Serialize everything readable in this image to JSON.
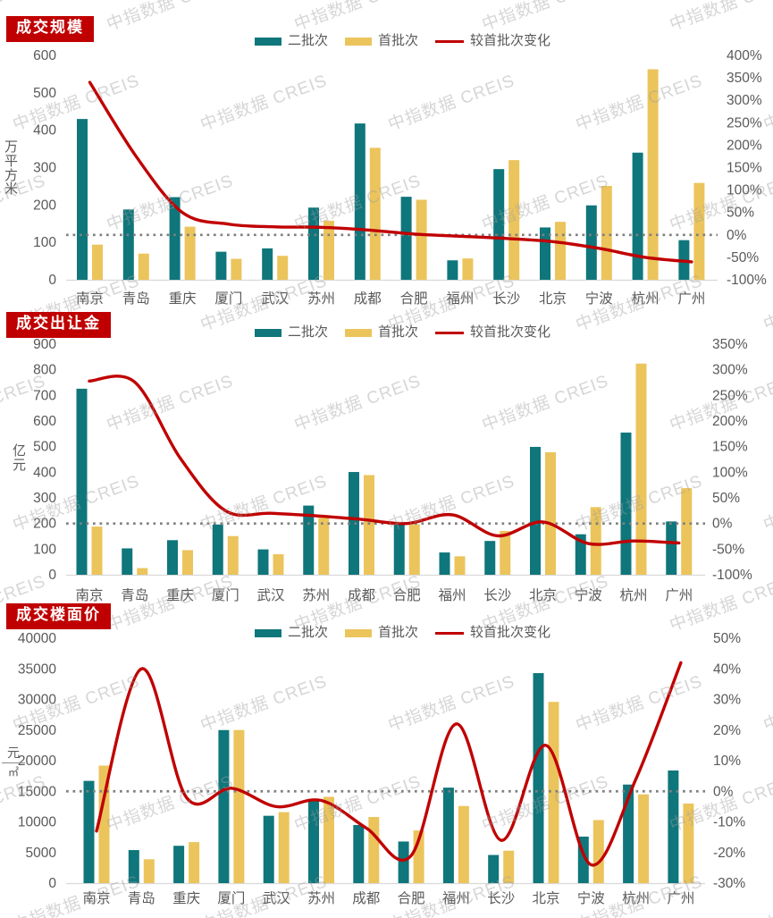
{
  "watermark": {
    "text": "中指数据 CREIS"
  },
  "palette": {
    "batch2_teal": "#0F767B",
    "batch1_yellow": "#EBC45C",
    "change_red": "#C00000",
    "title_bg": "#C00000",
    "title_text": "#FFFFFF",
    "axis_text": "#595959",
    "axis_line": "#D9D9D9",
    "dotted_line": "#7F7F7F"
  },
  "categories": [
    "南京",
    "青岛",
    "重庆",
    "厦门",
    "武汉",
    "苏州",
    "成都",
    "合肥",
    "福州",
    "长沙",
    "北京",
    "宁波",
    "杭州",
    "广州"
  ],
  "chart_data": [
    {
      "type": "bar",
      "combo": "bar+line",
      "title": "成交规模",
      "legend": [
        "二批次",
        "首批次",
        "较首批次变化"
      ],
      "legend_position": "top-center",
      "grid": false,
      "zero_reference_line": "dotted",
      "categories": [
        "南京",
        "青岛",
        "重庆",
        "厦门",
        "武汉",
        "苏州",
        "成都",
        "合肥",
        "福州",
        "长沙",
        "北京",
        "宁波",
        "杭州",
        "广州"
      ],
      "series": [
        {
          "name": "二批次",
          "kind": "bar",
          "axis": "left",
          "color": "#0F767B",
          "values": [
            430,
            188,
            221,
            75,
            84,
            193,
            418,
            222,
            52,
            296,
            140,
            199,
            340,
            106
          ]
        },
        {
          "name": "首批次",
          "kind": "bar",
          "axis": "left",
          "color": "#EBC45C",
          "values": [
            94,
            70,
            142,
            56,
            64,
            158,
            353,
            214,
            57,
            320,
            155,
            251,
            563,
            259
          ]
        },
        {
          "name": "较首批次变化",
          "kind": "line",
          "axis": "right",
          "color": "#C00000",
          "values": [
            340,
            175,
            50,
            24,
            18,
            17,
            11,
            2,
            -3,
            -8,
            -15,
            -30,
            -50,
            -60
          ]
        }
      ],
      "left_axis": {
        "label": "万平方米",
        "min": 0,
        "max": 600,
        "step": 100,
        "ticks": [
          "600",
          "500",
          "400",
          "300",
          "200",
          "100",
          "0"
        ]
      },
      "right_axis": {
        "min": -100,
        "max": 400,
        "step": 50,
        "unit": "%",
        "ticks": [
          "400%",
          "350%",
          "300%",
          "250%",
          "200%",
          "150%",
          "100%",
          "50%",
          "0%",
          "-50%",
          "-100%"
        ]
      }
    },
    {
      "type": "bar",
      "combo": "bar+line",
      "title": "成交出让金",
      "legend": [
        "二批次",
        "首批次",
        "较首批次变化"
      ],
      "legend_position": "top-center",
      "grid": false,
      "zero_reference_line": "dotted",
      "categories": [
        "南京",
        "青岛",
        "重庆",
        "厦门",
        "武汉",
        "苏州",
        "成都",
        "合肥",
        "福州",
        "长沙",
        "北京",
        "宁波",
        "杭州",
        "广州"
      ],
      "series": [
        {
          "name": "二批次",
          "kind": "bar",
          "axis": "left",
          "color": "#0F767B",
          "values": [
            726,
            103,
            135,
            196,
            99,
            270,
            401,
            205,
            87,
            132,
            499,
            158,
            555,
            208
          ]
        },
        {
          "name": "首批次",
          "kind": "bar",
          "axis": "left",
          "color": "#EBC45C",
          "values": [
            188,
            26,
            96,
            151,
            80,
            223,
            389,
            197,
            72,
            171,
            478,
            264,
            824,
            338
          ]
        },
        {
          "name": "较首批次变化",
          "kind": "line",
          "axis": "right",
          "color": "#C00000",
          "values": [
            278,
            276,
            128,
            25,
            20,
            15,
            8,
            0,
            17,
            -24,
            3,
            -39,
            -34,
            -38
          ]
        }
      ],
      "left_axis": {
        "label": "亿元",
        "min": 0,
        "max": 900,
        "step": 100,
        "ticks": [
          "900",
          "800",
          "700",
          "600",
          "500",
          "400",
          "300",
          "200",
          "100",
          "0"
        ]
      },
      "right_axis": {
        "min": -100,
        "max": 350,
        "step": 50,
        "unit": "%",
        "ticks": [
          "350%",
          "300%",
          "250%",
          "200%",
          "150%",
          "100%",
          "50%",
          "0%",
          "-50%",
          "-100%"
        ]
      }
    },
    {
      "type": "bar",
      "combo": "bar+line",
      "title": "成交楼面价",
      "legend": [
        "二批次",
        "首批次",
        "较首批次变化"
      ],
      "legend_position": "top-center",
      "grid": false,
      "zero_reference_line": "dotted",
      "categories": [
        "南京",
        "青岛",
        "重庆",
        "厦门",
        "武汉",
        "苏州",
        "成都",
        "合肥",
        "福州",
        "长沙",
        "北京",
        "宁波",
        "杭州",
        "广州"
      ],
      "series": [
        {
          "name": "二批次",
          "kind": "bar",
          "axis": "left",
          "color": "#0F767B",
          "values": [
            16700,
            5400,
            6100,
            25000,
            11000,
            13600,
            9500,
            6800,
            15600,
            4600,
            34300,
            7600,
            16100,
            18400
          ]
        },
        {
          "name": "首批次",
          "kind": "bar",
          "axis": "left",
          "color": "#EBC45C",
          "values": [
            19200,
            3900,
            6700,
            25000,
            11600,
            14100,
            10800,
            8600,
            12600,
            5300,
            29600,
            10300,
            14500,
            13000
          ]
        },
        {
          "name": "较首批次变化",
          "kind": "line",
          "axis": "right",
          "color": "#C00000",
          "values": [
            -13,
            40,
            -2,
            1,
            -5,
            -3,
            -12,
            -21,
            22,
            -16,
            15,
            -24,
            4,
            42
          ]
        }
      ],
      "left_axis": {
        "label": "元/㎡",
        "label_numerator": "元",
        "label_denominator": "㎡",
        "min": 0,
        "max": 40000,
        "step": 5000,
        "ticks": [
          "40000",
          "35000",
          "30000",
          "25000",
          "20000",
          "15000",
          "10000",
          "5000",
          "0"
        ]
      },
      "right_axis": {
        "min": -30,
        "max": 50,
        "step": 10,
        "unit": "%",
        "ticks": [
          "50%",
          "40%",
          "30%",
          "20%",
          "10%",
          "0%",
          "-10%",
          "-20%",
          "-30%"
        ]
      }
    }
  ]
}
